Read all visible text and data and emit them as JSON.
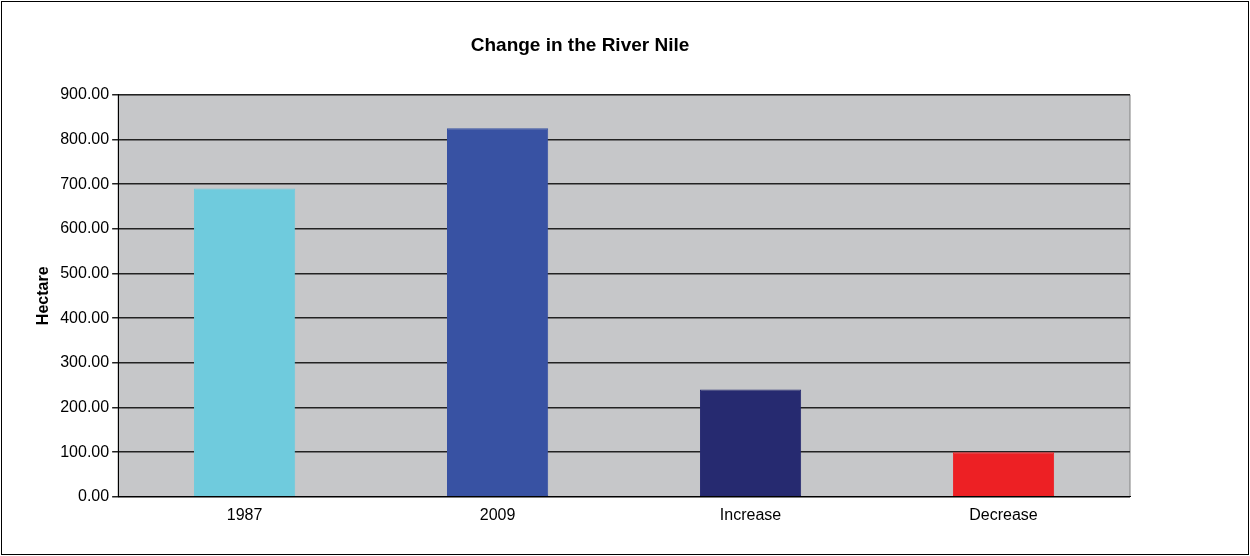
{
  "chart_data": {
    "type": "bar",
    "title": "Change in the River Nile",
    "ylabel": "Hectare",
    "categories": [
      "1987",
      "2009",
      "Increase",
      "Decrease"
    ],
    "values": [
      690,
      825,
      240,
      100
    ],
    "colors": [
      "#6fcbdd",
      "#3852a3",
      "#262a70",
      "#ed2024"
    ],
    "ylim": [
      0,
      900
    ],
    "yticks": [
      {
        "value": 0,
        "label": "0.00"
      },
      {
        "value": 100,
        "label": "100.00"
      },
      {
        "value": 200,
        "label": "200.00"
      },
      {
        "value": 300,
        "label": "300.00"
      },
      {
        "value": 400,
        "label": "400.00"
      },
      {
        "value": 500,
        "label": "500.00"
      },
      {
        "value": 600,
        "label": "600.00"
      },
      {
        "value": 700,
        "label": "700.00"
      },
      {
        "value": 800,
        "label": "800.00"
      },
      {
        "value": 900,
        "label": "900.00"
      }
    ],
    "grid": "y",
    "legend": false
  }
}
